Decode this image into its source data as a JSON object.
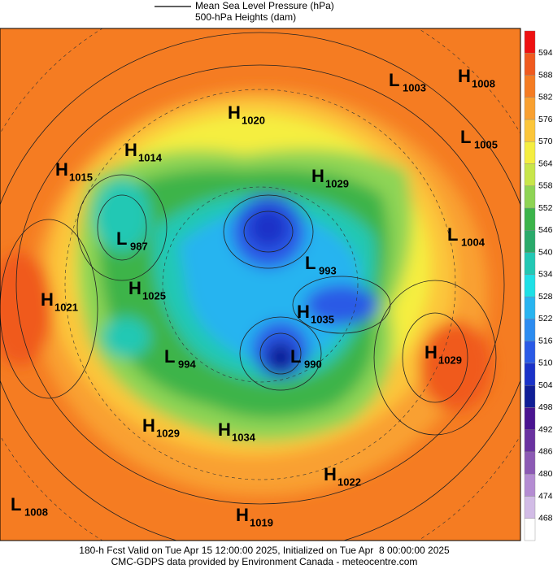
{
  "header": {
    "line1": "Mean Sea Level Pressure (hPa)",
    "line2": "500-hPa Heights (dam)"
  },
  "colorbar": {
    "labels": [
      594,
      588,
      582,
      576,
      570,
      564,
      558,
      552,
      546,
      540,
      534,
      528,
      522,
      516,
      510,
      504,
      498,
      492,
      486,
      480,
      474,
      468
    ],
    "colors": [
      "#ee1111",
      "#f05a1e",
      "#f57c22",
      "#f9a030",
      "#fcc63a",
      "#f5ee40",
      "#c8e64a",
      "#8ed454",
      "#3cb44a",
      "#2aaa6a",
      "#22c8b4",
      "#1ee0e6",
      "#28b4f0",
      "#2c8cf0",
      "#2a5ae6",
      "#1a32c8",
      "#101e96",
      "#4a1490",
      "#6a32a0",
      "#8c5ab4",
      "#b48cd2",
      "#d2bce6",
      "#ffffff"
    ]
  },
  "centers": [
    {
      "letter": "L",
      "value": "1003"
    },
    {
      "letter": "H",
      "value": "1008"
    },
    {
      "letter": "H",
      "value": "1020"
    },
    {
      "letter": "L",
      "value": "1005"
    },
    {
      "letter": "H",
      "value": "1014"
    },
    {
      "letter": "H",
      "value": "1015"
    },
    {
      "letter": "H",
      "value": "1029"
    },
    {
      "letter": "L",
      "value": "987"
    },
    {
      "letter": "L",
      "value": "1004"
    },
    {
      "letter": "L",
      "value": "993"
    },
    {
      "letter": "H",
      "value": "1025"
    },
    {
      "letter": "H",
      "value": "1021"
    },
    {
      "letter": "H",
      "value": "1035"
    },
    {
      "letter": "H",
      "value": "1029"
    },
    {
      "letter": "L",
      "value": "994"
    },
    {
      "letter": "L",
      "value": "990"
    },
    {
      "letter": "H",
      "value": "1029"
    },
    {
      "letter": "H",
      "value": "1034"
    },
    {
      "letter": "H",
      "value": "1022"
    },
    {
      "letter": "L",
      "value": "1008"
    },
    {
      "letter": "H",
      "value": "1019"
    }
  ],
  "footer": {
    "line1": "180-h Fcst Valid on Tue Apr 15 12:00:00 2025, Initialized on Tue Apr  8 00:00:00 2025",
    "line2": "CMC-GDPS data provided by Environment Canada - meteocentre.com"
  }
}
